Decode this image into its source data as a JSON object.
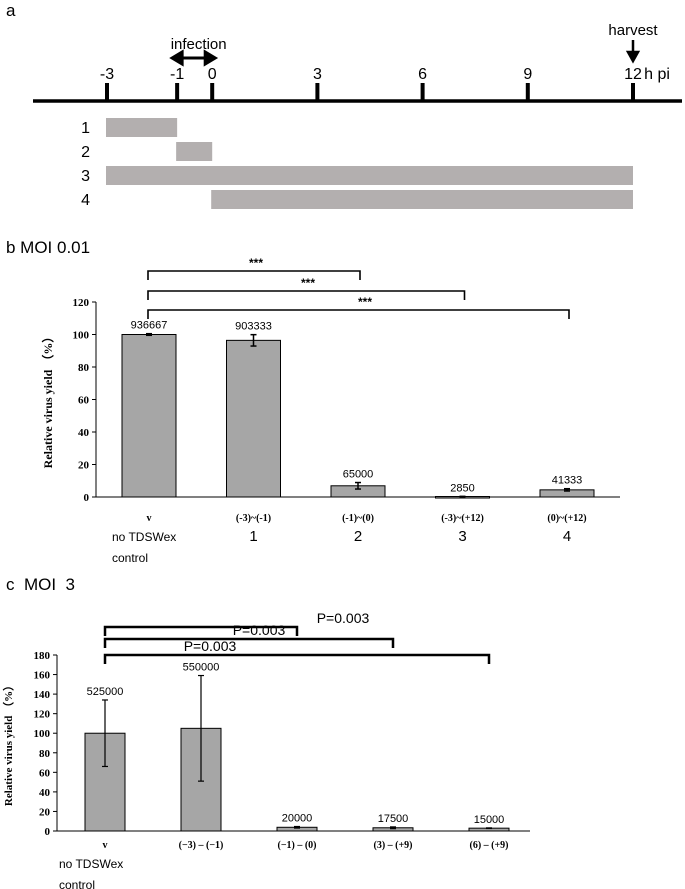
{
  "panel_a": {
    "label": "a",
    "infection_label": "infection",
    "harvest_label": "harvest",
    "unit_label": "h pi",
    "ticks": [
      -3,
      -1,
      0,
      3,
      6,
      9,
      12
    ],
    "ticks_text": [
      "-3",
      "-1",
      "0",
      "3",
      "6",
      "9",
      "12"
    ],
    "infection_range": [
      -1,
      0
    ],
    "harvest_time": 12,
    "treatments": [
      {
        "id": "1",
        "start": -3,
        "end": -1
      },
      {
        "id": "2",
        "start": -1,
        "end": 0
      },
      {
        "id": "3",
        "start": -3,
        "end": 12
      },
      {
        "id": "4",
        "start": 0,
        "end": 12
      }
    ],
    "bar_color": "#b3afaf"
  },
  "chart_data": [
    {
      "type": "bar",
      "panel": "b",
      "title": "b MOI 0.01",
      "ylabel": "Relative virus yield （%）",
      "ylim": [
        0,
        120
      ],
      "yticks": [
        0,
        20,
        40,
        60,
        80,
        100,
        120
      ],
      "yticks_text": [
        "0",
        "20",
        "40",
        "60",
        "80",
        "100",
        "120"
      ],
      "categories": [
        "v",
        "(-3)~(-1)",
        "(-1)~(0)",
        "(-3)~(+12)",
        "(0)~(+12)"
      ],
      "group_labels": [
        "no TDSWex",
        "1",
        "2",
        "3",
        "4"
      ],
      "group_label_line2": "control",
      "values": [
        100,
        96.4,
        6.9,
        0.3,
        4.4
      ],
      "errors": [
        0.5,
        3.5,
        2.0,
        0.1,
        0.7
      ],
      "data_labels": [
        "936667",
        "903333",
        "65000",
        "2850",
        "41333"
      ],
      "significance": [
        {
          "from": 0,
          "to": 2,
          "label": "***"
        },
        {
          "from": 0,
          "to": 3,
          "label": "***"
        },
        {
          "from": 0,
          "to": 4,
          "label": "***"
        }
      ],
      "bar_color": "#a6a6a6"
    },
    {
      "type": "bar",
      "panel": "c",
      "title": "c  MOI  3",
      "ylabel": "Relative virus yield （%）",
      "ylim": [
        0,
        180
      ],
      "yticks": [
        0,
        20,
        40,
        60,
        80,
        100,
        120,
        140,
        160,
        180
      ],
      "yticks_text": [
        "0",
        "20",
        "40",
        "60",
        "80",
        "100",
        "120",
        "140",
        "160",
        "180"
      ],
      "categories": [
        "v",
        "(−3) – (−1)",
        "(−1) – (0)",
        "(3) – (+9)",
        "(6) – (+9)"
      ],
      "group_labels": [
        "no TDSWex"
      ],
      "group_label_line2": "control",
      "values": [
        100,
        105,
        3.8,
        3.3,
        2.9
      ],
      "errors": [
        34,
        54,
        0.8,
        0.9,
        0.3
      ],
      "data_labels": [
        "525000",
        "550000",
        "20000",
        "17500",
        "15000"
      ],
      "significance": [
        {
          "from": 0,
          "to": 2,
          "label": "P=0.003"
        },
        {
          "from": 0,
          "to": 3,
          "label": "P=0.003"
        },
        {
          "from": 0,
          "to": 4,
          "label": "P=0.003"
        }
      ],
      "bar_color": "#a6a6a6"
    }
  ]
}
